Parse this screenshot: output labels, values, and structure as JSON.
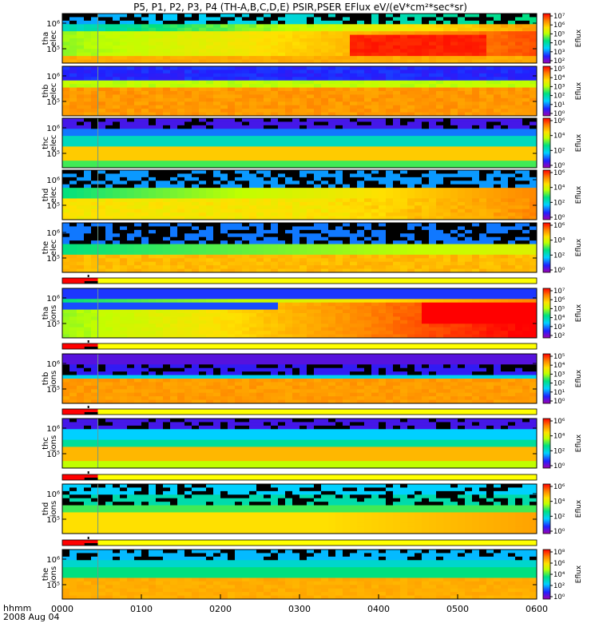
{
  "title": "P5, P1, P2, P3, P4 (TH-A,B,C,D,E) PSIR,PSER EFlux eV/(eV*cm²*sec*sr)",
  "chart_data": {
    "type": "heatmap",
    "title": "P5, P1, P2, P3, P4 (TH-A,B,C,D,E) PSIR,PSER EFlux eV/(eV*cm²*sec*sr)",
    "time_axis": {
      "label": "hhmm",
      "date": "2008 Aug 04",
      "ticks": [
        "0000",
        "0100",
        "0200",
        "0300",
        "0400",
        "0500",
        "0600"
      ],
      "range_hours": [
        0,
        6
      ]
    },
    "y_scale": "log",
    "colorbar_label": "Eflux",
    "colorbar_scale": "log",
    "colormap": [
      "#a000b0",
      "#2020ff",
      "#00d0ff",
      "#00e080",
      "#c0ff00",
      "#ffe000",
      "#ff8000",
      "#ff0000"
    ],
    "panels": [
      {
        "probe": "tha",
        "species": "elec",
        "y_ticks": [
          "10⁶",
          "10⁵"
        ],
        "cbar_ticks": [
          "10⁷",
          "10⁶",
          "10⁵",
          "10⁴",
          "10³",
          "10²"
        ],
        "pattern": "tha_elec"
      },
      {
        "probe": "thb",
        "species": "elec",
        "y_ticks": [
          "10⁶",
          "10⁵"
        ],
        "cbar_ticks": [
          "10⁵",
          "10⁴",
          "10³",
          "10²",
          "10¹",
          "10⁰"
        ],
        "pattern": "thb_elec"
      },
      {
        "probe": "thc",
        "species": "elec",
        "y_ticks": [
          "10⁶",
          "10⁵"
        ],
        "cbar_ticks": [
          "10⁶",
          "10⁴",
          "10²",
          "10⁰"
        ],
        "pattern": "thc_elec"
      },
      {
        "probe": "thd",
        "species": "elec",
        "y_ticks": [
          "10⁶",
          "10⁵"
        ],
        "cbar_ticks": [
          "10⁶",
          "10⁴",
          "10²",
          "10⁰"
        ],
        "pattern": "thd_elec"
      },
      {
        "probe": "the",
        "species": "elec",
        "y_ticks": [
          "10⁶",
          "10⁵"
        ],
        "cbar_ticks": [
          "10⁶",
          "10⁴",
          "10²",
          "10⁰"
        ],
        "pattern": "the_elec"
      },
      {
        "probe": "tha",
        "species": "ions",
        "y_ticks": [
          "10⁶",
          "10⁵"
        ],
        "cbar_ticks": [
          "10⁷",
          "10⁶",
          "10⁵",
          "10⁴",
          "10³",
          "10²"
        ],
        "pattern": "tha_ions"
      },
      {
        "probe": "thb",
        "species": "ions",
        "y_ticks": [
          "10⁶",
          "10⁵"
        ],
        "cbar_ticks": [
          "10⁵",
          "10⁴",
          "10³",
          "10²",
          "10¹",
          "10⁰"
        ],
        "pattern": "thb_ions"
      },
      {
        "probe": "thc",
        "species": "ions",
        "y_ticks": [
          "10⁶",
          "10⁵"
        ],
        "cbar_ticks": [
          "10⁶",
          "10⁴",
          "10²",
          "10⁰"
        ],
        "pattern": "thc_ions"
      },
      {
        "probe": "thd",
        "species": "ions",
        "y_ticks": [
          "10⁶",
          "10⁵"
        ],
        "cbar_ticks": [
          "10⁶",
          "10⁴",
          "10²",
          "10⁰"
        ],
        "pattern": "thd_ions"
      },
      {
        "probe": "the",
        "species": "ions",
        "y_ticks": [
          "10⁶",
          "10⁵"
        ],
        "cbar_ticks": [
          "10⁸",
          "10⁶",
          "10⁴",
          "10²",
          "10⁰"
        ],
        "pattern": "the_ions"
      }
    ],
    "mode_bars": [
      {
        "segments": [
          {
            "color": "#ff0000",
            "start_h": 0.0,
            "end_h": 0.45
          },
          {
            "color": "#000000",
            "start_h": 0.28,
            "end_h": 0.45
          },
          {
            "color": "#ffff00",
            "start_h": 0.45,
            "end_h": 6.0
          }
        ]
      },
      {
        "segments": [
          {
            "color": "#ff0000",
            "start_h": 0.0,
            "end_h": 0.45
          },
          {
            "color": "#000000",
            "start_h": 0.28,
            "end_h": 0.45
          },
          {
            "color": "#ffff00",
            "start_h": 0.45,
            "end_h": 6.0
          }
        ]
      },
      {
        "segments": [
          {
            "color": "#ff0000",
            "start_h": 0.0,
            "end_h": 0.45
          },
          {
            "color": "#000000",
            "start_h": 0.28,
            "end_h": 0.45
          },
          {
            "color": "#ffff00",
            "start_h": 0.45,
            "end_h": 6.0
          }
        ]
      },
      {
        "segments": [
          {
            "color": "#ff0000",
            "start_h": 0.0,
            "end_h": 0.45
          },
          {
            "color": "#000000",
            "start_h": 0.28,
            "end_h": 0.45
          },
          {
            "color": "#ffff00",
            "start_h": 0.45,
            "end_h": 6.0
          }
        ]
      },
      {
        "segments": [
          {
            "color": "#ff0000",
            "start_h": 0.0,
            "end_h": 0.45
          },
          {
            "color": "#000000",
            "start_h": 0.28,
            "end_h": 0.45
          },
          {
            "color": "#ffff00",
            "start_h": 0.45,
            "end_h": 6.0
          }
        ]
      }
    ]
  }
}
